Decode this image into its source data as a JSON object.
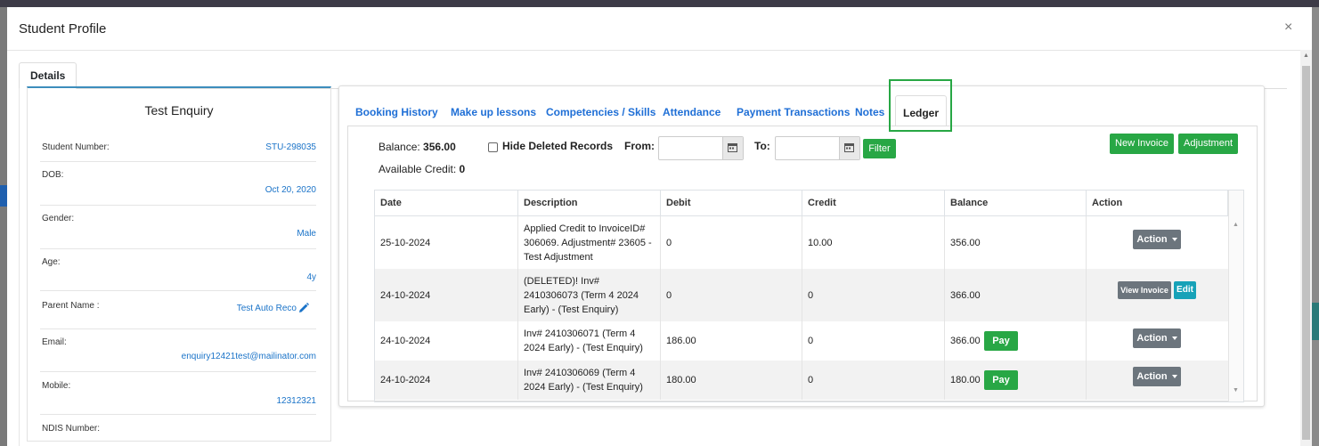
{
  "modal": {
    "title": "Student Profile",
    "close_symbol": "×"
  },
  "outer_tab": "Details",
  "student": {
    "name": "Test Enquiry",
    "fields": [
      {
        "label": "Student Number:",
        "value": "STU-298035"
      },
      {
        "label": "DOB:",
        "value": "Oct 20, 2020"
      },
      {
        "label": "Gender:",
        "value": "Male"
      },
      {
        "label": "Age:",
        "value": "4y"
      },
      {
        "label": "Parent Name :",
        "value": "Test Auto Reco"
      },
      {
        "label": "Email:",
        "value": "enquiry12421test@mailinator.com"
      },
      {
        "label": "Mobile:",
        "value": "12312321"
      },
      {
        "label": "NDIS Number:",
        "value": ""
      }
    ]
  },
  "tabs": [
    "Booking History",
    "Make up lessons",
    "Competencies / Skills",
    "Attendance",
    "Payment Transactions",
    "Notes",
    "Ledger"
  ],
  "ledger": {
    "balance_label": "Balance:",
    "balance_value": "356.00",
    "credit_label": "Available Credit:",
    "credit_value": "0",
    "hide_deleted_label": "Hide Deleted Records",
    "from_label": "From:",
    "to_label": "To:",
    "filter_label": "Filter",
    "new_invoice_label": "New Invoice",
    "adjustment_label": "Adjustment",
    "columns": [
      "Date",
      "Description",
      "Debit",
      "Credit",
      "Balance",
      "Action"
    ],
    "rows": [
      {
        "date": "25-10-2024",
        "description": "Applied Credit to InvoiceID# 306069. Adjustment# 23605 - Test Adjustment",
        "debit": "0",
        "credit": "10.00",
        "balance": "356.00",
        "pay": "",
        "action": "Action"
      },
      {
        "date": "24-10-2024",
        "description": "(DELETED)! Inv# 2410306073 (Term 4 2024 Early) - (Test Enquiry)",
        "debit": "0",
        "credit": "0",
        "balance": "366.00",
        "pay": "",
        "view_invoice": "View Invoice",
        "edit": "Edit"
      },
      {
        "date": "24-10-2024",
        "description": "Inv# 2410306071 (Term 4 2024 Early) - (Test Enquiry)",
        "debit": "186.00",
        "credit": "0",
        "balance": "366.00",
        "pay": "Pay",
        "action": "Action"
      },
      {
        "date": "24-10-2024",
        "description": "Inv# 2410306069 (Term 4 2024 Early) - (Test Enquiry)",
        "debit": "180.00",
        "credit": "0",
        "balance": "180.00",
        "pay": "Pay",
        "action": "Action"
      }
    ]
  },
  "colors": {
    "accent_blue": "#1f6fd6",
    "success_green": "#28a745",
    "secondary_grey": "#6c757d",
    "info_teal": "#17a2b8"
  }
}
